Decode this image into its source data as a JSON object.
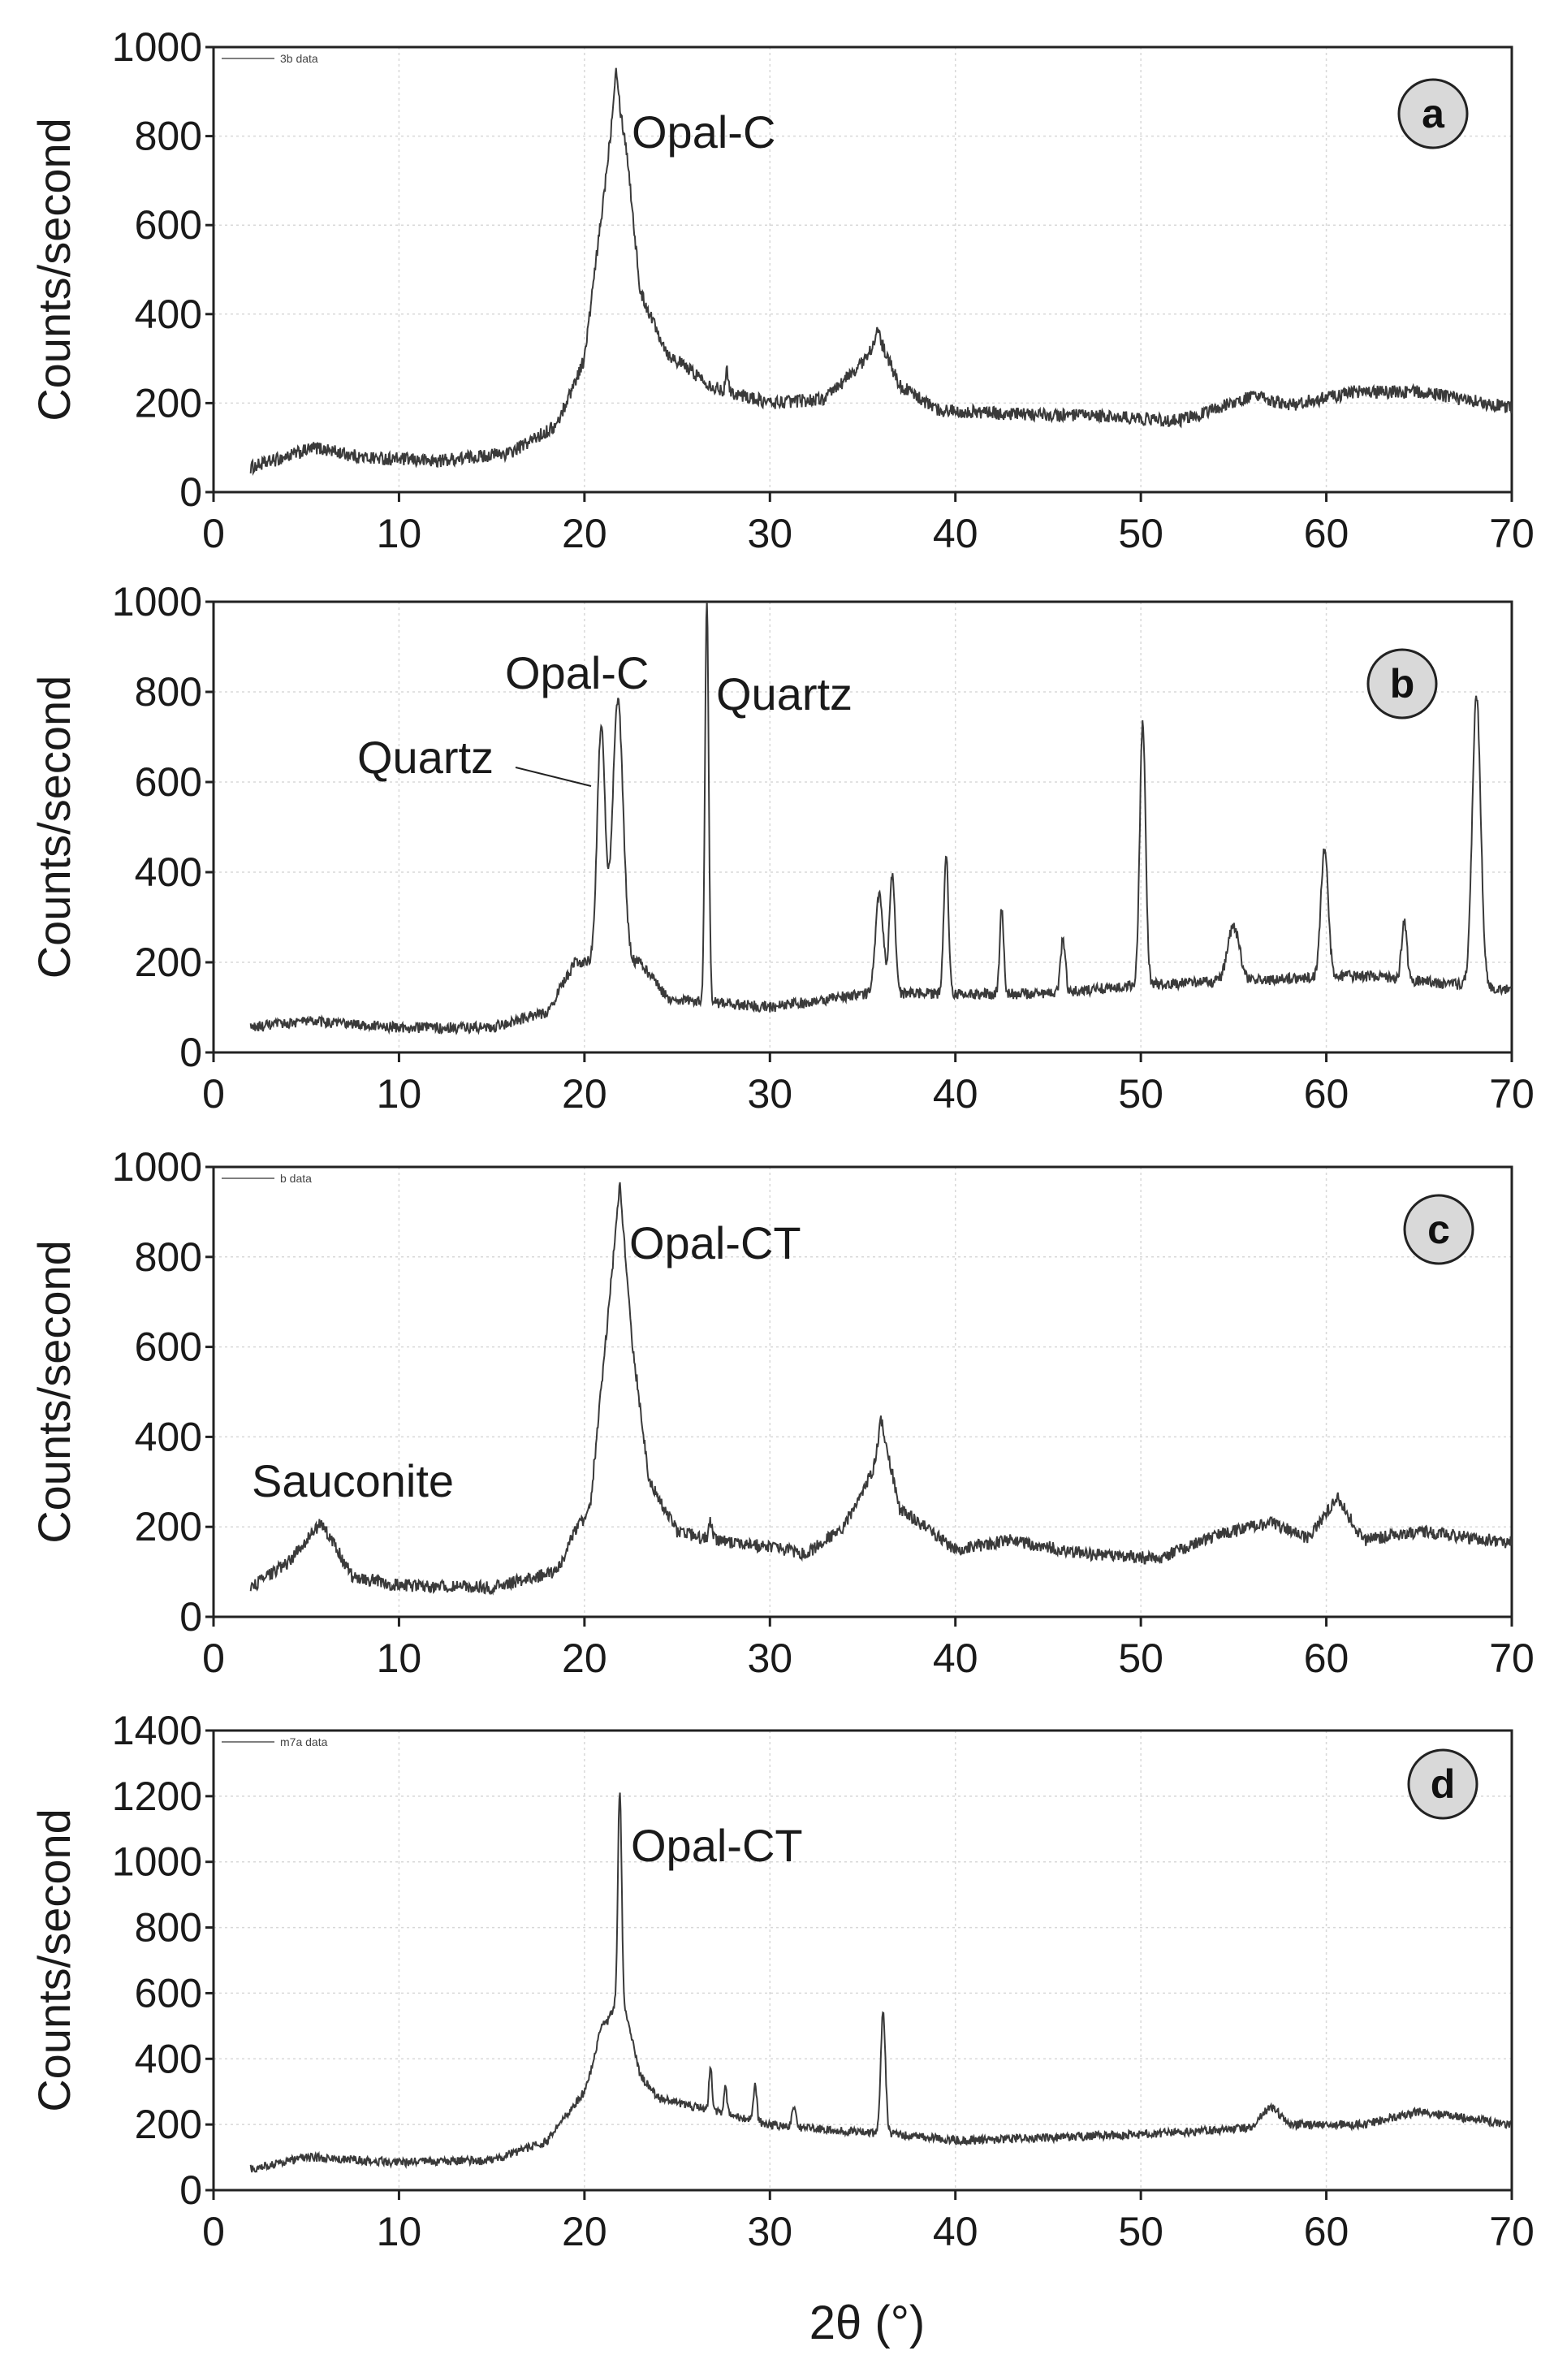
{
  "figure": {
    "xlabel": "2θ (°)"
  },
  "chart_data": [
    {
      "type": "line",
      "panel_label": "a",
      "legend": "3b data",
      "xlabel": "2θ (°)",
      "ylabel": "Counts/second",
      "xlim": [
        0,
        70
      ],
      "ylim": [
        0,
        1000
      ],
      "xticks": [
        0,
        10,
        20,
        30,
        40,
        50,
        60,
        70
      ],
      "yticks": [
        0,
        200,
        400,
        600,
        800,
        1000
      ],
      "baseline": [
        [
          2,
          55
        ],
        [
          5.5,
          100
        ],
        [
          8,
          78
        ],
        [
          12,
          70
        ],
        [
          16,
          88
        ],
        [
          18.5,
          150
        ],
        [
          20,
          300
        ],
        [
          21,
          650
        ],
        [
          21.7,
          920
        ],
        [
          22.3,
          760
        ],
        [
          23,
          450
        ],
        [
          24.5,
          310
        ],
        [
          27,
          235
        ],
        [
          30,
          200
        ],
        [
          33,
          210
        ],
        [
          35.2,
          300
        ],
        [
          35.8,
          350
        ],
        [
          37,
          240
        ],
        [
          39,
          185
        ],
        [
          43,
          175
        ],
        [
          48,
          170
        ],
        [
          52,
          160
        ],
        [
          56,
          215
        ],
        [
          58,
          195
        ],
        [
          61.5,
          225
        ],
        [
          65,
          225
        ],
        [
          70,
          190
        ]
      ],
      "peaks": [
        [
          21.7,
          960,
          0.15
        ],
        [
          27.7,
          270,
          0.12
        ],
        [
          35.8,
          360,
          0.3
        ]
      ],
      "noise": 15,
      "annotations": [
        {
          "text": "Opal-C"
        }
      ]
    },
    {
      "type": "line",
      "panel_label": "b",
      "legend": "",
      "xlabel": "2θ (°)",
      "ylabel": "Counts/second",
      "xlim": [
        0,
        70
      ],
      "ylim": [
        0,
        1000
      ],
      "xticks": [
        0,
        10,
        20,
        30,
        40,
        50,
        60,
        70
      ],
      "yticks": [
        0,
        200,
        400,
        600,
        800,
        1000
      ],
      "baseline": [
        [
          2,
          55
        ],
        [
          5,
          70
        ],
        [
          10,
          55
        ],
        [
          15,
          55
        ],
        [
          18,
          90
        ],
        [
          19.5,
          200
        ],
        [
          23,
          200
        ],
        [
          24.5,
          120
        ],
        [
          26,
          115
        ],
        [
          30,
          100
        ],
        [
          35,
          130
        ],
        [
          45,
          130
        ],
        [
          50,
          150
        ],
        [
          56,
          160
        ],
        [
          62,
          170
        ],
        [
          70,
          140
        ]
      ],
      "peaks": [
        [
          20.9,
          720,
          0.3
        ],
        [
          21.8,
          780,
          0.4
        ],
        [
          26.6,
          1000,
          0.14
        ],
        [
          35.9,
          350,
          0.3
        ],
        [
          36.6,
          390,
          0.22
        ],
        [
          39.5,
          440,
          0.18
        ],
        [
          42.5,
          320,
          0.15
        ],
        [
          45.8,
          250,
          0.18
        ],
        [
          50.1,
          730,
          0.22
        ],
        [
          55.0,
          280,
          0.45
        ],
        [
          59.9,
          450,
          0.28
        ],
        [
          64.2,
          290,
          0.2
        ],
        [
          68.1,
          790,
          0.32
        ]
      ],
      "noise": 12,
      "annotations": [
        {
          "text": "Opal-C"
        },
        {
          "text": "Quartz"
        },
        {
          "text": "Quartz"
        }
      ]
    },
    {
      "type": "line",
      "panel_label": "c",
      "legend": "b data",
      "xlabel": "2θ (°)",
      "ylabel": "Counts/second",
      "xlim": [
        0,
        70
      ],
      "ylim": [
        0,
        1000
      ],
      "xticks": [
        0,
        10,
        20,
        30,
        40,
        50,
        60,
        70
      ],
      "yticks": [
        0,
        200,
        400,
        600,
        800,
        1000
      ],
      "baseline": [
        [
          2,
          65
        ],
        [
          4,
          120
        ],
        [
          5.8,
          210
        ],
        [
          7.5,
          90
        ],
        [
          10,
          70
        ],
        [
          15,
          65
        ],
        [
          18.5,
          100
        ],
        [
          19.5,
          190
        ],
        [
          20.3,
          240
        ],
        [
          21,
          550
        ],
        [
          21.9,
          950
        ],
        [
          22.6,
          600
        ],
        [
          23.5,
          300
        ],
        [
          25,
          190
        ],
        [
          27,
          170
        ],
        [
          30,
          155
        ],
        [
          32,
          140
        ],
        [
          34,
          200
        ],
        [
          35.6,
          330
        ],
        [
          36,
          430
        ],
        [
          37,
          240
        ],
        [
          40,
          150
        ],
        [
          43,
          170
        ],
        [
          47,
          140
        ],
        [
          51,
          130
        ],
        [
          54,
          180
        ],
        [
          57,
          210
        ],
        [
          59,
          175
        ],
        [
          60.6,
          265
        ],
        [
          62,
          170
        ],
        [
          65,
          190
        ],
        [
          70,
          165
        ]
      ],
      "peaks": [
        [
          21.9,
          960,
          0.2
        ],
        [
          36.0,
          440,
          0.2
        ],
        [
          26.8,
          210,
          0.12
        ]
      ],
      "noise": 14,
      "annotations": [
        {
          "text": "Opal-CT"
        },
        {
          "text": "Sauconite"
        }
      ]
    },
    {
      "type": "line",
      "panel_label": "d",
      "legend": "m7a data",
      "xlabel": "2θ (°)",
      "ylabel": "Counts/second",
      "xlim": [
        0,
        70
      ],
      "ylim": [
        0,
        1400
      ],
      "xticks": [
        0,
        10,
        20,
        30,
        40,
        50,
        60,
        70
      ],
      "yticks": [
        0,
        200,
        400,
        600,
        800,
        1000,
        1200,
        1400
      ],
      "baseline": [
        [
          2,
          65
        ],
        [
          5,
          100
        ],
        [
          10,
          85
        ],
        [
          15,
          90
        ],
        [
          18,
          150
        ],
        [
          20,
          300
        ],
        [
          21,
          480
        ],
        [
          22,
          600
        ],
        [
          23,
          350
        ],
        [
          24,
          280
        ],
        [
          27,
          240
        ],
        [
          30,
          200
        ],
        [
          34,
          180
        ],
        [
          37,
          170
        ],
        [
          40,
          150
        ],
        [
          50,
          170
        ],
        [
          56,
          190
        ],
        [
          57,
          260
        ],
        [
          58,
          200
        ],
        [
          62,
          200
        ],
        [
          65,
          240
        ],
        [
          70,
          200
        ]
      ],
      "peaks": [
        [
          21.9,
          1220,
          0.14
        ],
        [
          20.9,
          500,
          0.25
        ],
        [
          26.8,
          370,
          0.12
        ],
        [
          27.6,
          310,
          0.12
        ],
        [
          29.2,
          330,
          0.12
        ],
        [
          31.3,
          260,
          0.15
        ],
        [
          36.1,
          540,
          0.18
        ]
      ],
      "noise": 13,
      "annotations": [
        {
          "text": "Opal-CT"
        }
      ]
    }
  ]
}
